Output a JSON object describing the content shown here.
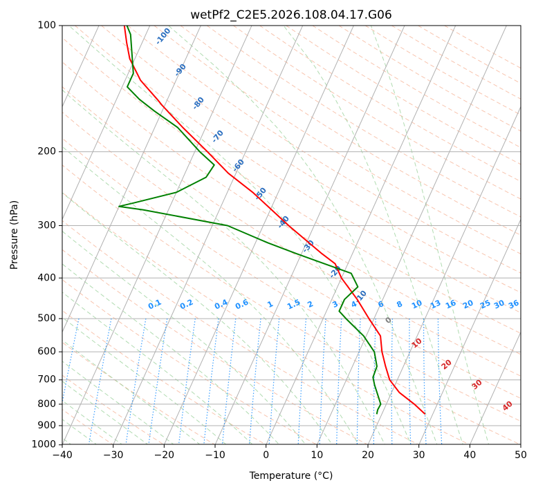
{
  "chart_data": {
    "type": "skew-t",
    "title": "wetPf2_C2E5.2026.108.04.17.G06",
    "xlabel": "Temperature (°C)",
    "ylabel": "Pressure (hPa)",
    "xlim": [
      -40,
      50
    ],
    "ylim": [
      1050,
      100
    ],
    "x_ticks": [
      -40,
      -30,
      -20,
      -10,
      0,
      10,
      20,
      30,
      40,
      50
    ],
    "y_ticks": [
      100,
      200,
      300,
      400,
      500,
      600,
      700,
      800,
      900,
      1000
    ],
    "temperature": {
      "name": "Temperature",
      "color": "#ff0000",
      "points": [
        [
          845,
          28.5
        ],
        [
          800,
          25.5
        ],
        [
          750,
          21.5
        ],
        [
          700,
          18.5
        ],
        [
          650,
          16.5
        ],
        [
          600,
          14.5
        ],
        [
          550,
          12.8
        ],
        [
          500,
          9.0
        ],
        [
          450,
          5.0
        ],
        [
          400,
          0.0
        ],
        [
          370,
          -2.5
        ],
        [
          350,
          -6.0
        ],
        [
          300,
          -15.0
        ],
        [
          250,
          -25.0
        ],
        [
          225,
          -31.5
        ],
        [
          200,
          -37.5
        ],
        [
          175,
          -44.5
        ],
        [
          155,
          -50.5
        ],
        [
          150,
          -52.0
        ],
        [
          135,
          -57.0
        ],
        [
          120,
          -61.0
        ],
        [
          110,
          -63.0
        ],
        [
          100,
          -65.0
        ]
      ]
    },
    "dewpoint": {
      "name": "Dew point",
      "color": "#008000",
      "points": [
        [
          845,
          19.0
        ],
        [
          825,
          18.8
        ],
        [
          800,
          18.9
        ],
        [
          760,
          17.5
        ],
        [
          720,
          16.0
        ],
        [
          690,
          15.0
        ],
        [
          650,
          14.8
        ],
        [
          600,
          13.0
        ],
        [
          550,
          9.5
        ],
        [
          500,
          4.5
        ],
        [
          480,
          2.5
        ],
        [
          450,
          2.5
        ],
        [
          420,
          4.0
        ],
        [
          390,
          1.5
        ],
        [
          350,
          -11.0
        ],
        [
          330,
          -17.5
        ],
        [
          300,
          -27.0
        ],
        [
          275,
          -45.0
        ],
        [
          270,
          -50.0
        ],
        [
          265,
          -47.5
        ],
        [
          250,
          -40.0
        ],
        [
          230,
          -35.5
        ],
        [
          215,
          -35.0
        ],
        [
          200,
          -39.0
        ],
        [
          175,
          -45.5
        ],
        [
          160,
          -51.5
        ],
        [
          150,
          -55.5
        ],
        [
          140,
          -59.0
        ],
        [
          130,
          -59.0
        ],
        [
          120,
          -60.5
        ],
        [
          105,
          -63.0
        ],
        [
          100,
          -64.5
        ]
      ]
    },
    "isotherm_labels": [
      "-100",
      "-90",
      "-80",
      "-70",
      "-60",
      "-50",
      "-40",
      "-30",
      "-20",
      "-10"
    ],
    "mixing_ratio_labels": [
      "0.1",
      "0.2",
      "0.4",
      "0.6",
      "1",
      "1.5",
      "2",
      "3",
      "4",
      "6",
      "8",
      "10",
      "13",
      "16",
      "20",
      "25",
      "30",
      "36"
    ],
    "mixing_ratio_values": [
      0.1,
      0.2,
      0.4,
      0.6,
      1,
      1.5,
      2,
      3,
      4,
      6,
      8,
      10,
      13,
      16,
      20,
      25,
      30,
      36
    ],
    "moist_adiabat_labels": [
      "0",
      "10",
      "20",
      "30",
      "40"
    ],
    "colors": {
      "isotherm": "#2a6ebf",
      "mixing_ratio": "#1e90ff",
      "moist_adiabat_zero": "#808080",
      "moist_adiabat": "#d62728",
      "dry_adiabat": "#f4a582",
      "moist_adiabat_line": "#8fcc8f",
      "grid": "#b0b0b0"
    }
  }
}
